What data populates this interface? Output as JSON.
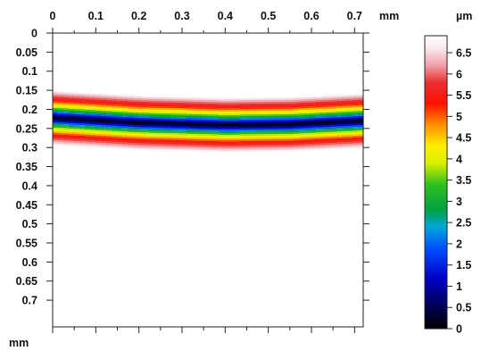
{
  "chart_data": {
    "type": "heatmap",
    "title": "",
    "x_unit": "mm",
    "y_unit": "mm",
    "colorbar_unit": "µm",
    "xlim": [
      0,
      0.72
    ],
    "ylim": [
      0,
      0.77
    ],
    "y_axis_inverted": true,
    "x_ticks": [
      {
        "value": 0,
        "label": "0"
      },
      {
        "value": 0.1,
        "label": "0.1"
      },
      {
        "value": 0.2,
        "label": "0.2"
      },
      {
        "value": 0.3,
        "label": "0.3"
      },
      {
        "value": 0.4,
        "label": "0.4"
      },
      {
        "value": 0.5,
        "label": "0.5"
      },
      {
        "value": 0.6,
        "label": "0.6"
      },
      {
        "value": 0.7,
        "label": "0.7"
      }
    ],
    "y_ticks": [
      {
        "value": 0,
        "label": "0"
      },
      {
        "value": 0.05,
        "label": "0.05"
      },
      {
        "value": 0.1,
        "label": "0.1"
      },
      {
        "value": 0.15,
        "label": "0.15"
      },
      {
        "value": 0.2,
        "label": "0.2"
      },
      {
        "value": 0.25,
        "label": "0.25"
      },
      {
        "value": 0.3,
        "label": "0.3"
      },
      {
        "value": 0.35,
        "label": "0.35"
      },
      {
        "value": 0.4,
        "label": "0.4"
      },
      {
        "value": 0.45,
        "label": "0.45"
      },
      {
        "value": 0.5,
        "label": "0.5"
      },
      {
        "value": 0.55,
        "label": "0.55"
      },
      {
        "value": 0.6,
        "label": "0.6"
      },
      {
        "value": 0.65,
        "label": "0.65"
      },
      {
        "value": 0.7,
        "label": "0.7"
      }
    ],
    "colorbar": {
      "range": [
        0,
        6.9
      ],
      "ticks": [
        {
          "value": 0,
          "label": "0"
        },
        {
          "value": 0.5,
          "label": "0.5"
        },
        {
          "value": 1,
          "label": "1"
        },
        {
          "value": 1.5,
          "label": "1.5"
        },
        {
          "value": 2,
          "label": "2"
        },
        {
          "value": 2.5,
          "label": "2.5"
        },
        {
          "value": 3,
          "label": "3"
        },
        {
          "value": 3.5,
          "label": "3.5"
        },
        {
          "value": 4,
          "label": "4"
        },
        {
          "value": 4.5,
          "label": "4.5"
        },
        {
          "value": 5,
          "label": "5"
        },
        {
          "value": 5.5,
          "label": "5.5"
        },
        {
          "value": 6,
          "label": "6"
        },
        {
          "value": 6.5,
          "label": "6.5"
        }
      ],
      "colormap": [
        {
          "value": 0.0,
          "color": "#000000"
        },
        {
          "value": 0.6,
          "color": "#000060"
        },
        {
          "value": 1.2,
          "color": "#0000c8"
        },
        {
          "value": 1.9,
          "color": "#0050ff"
        },
        {
          "value": 2.4,
          "color": "#00a8d8"
        },
        {
          "value": 2.8,
          "color": "#00a040"
        },
        {
          "value": 3.4,
          "color": "#30c020"
        },
        {
          "value": 3.9,
          "color": "#d8f000"
        },
        {
          "value": 4.3,
          "color": "#ffee00"
        },
        {
          "value": 4.8,
          "color": "#ff9000"
        },
        {
          "value": 5.3,
          "color": "#ff1000"
        },
        {
          "value": 5.8,
          "color": "#e83030"
        },
        {
          "value": 6.2,
          "color": "#f0a0a8"
        },
        {
          "value": 6.6,
          "color": "#f8e8ec"
        },
        {
          "value": 6.9,
          "color": "#ffffff"
        }
      ]
    },
    "background_value": 6.9,
    "band": {
      "description_of_center_y_mm": [
        {
          "x": 0.0,
          "y": 0.222
        },
        {
          "x": 0.2,
          "y": 0.235
        },
        {
          "x": 0.4,
          "y": 0.241
        },
        {
          "x": 0.55,
          "y": 0.239
        },
        {
          "x": 0.72,
          "y": 0.23
        }
      ],
      "profile": [
        {
          "d": 0.0,
          "value": 0.0
        },
        {
          "d": 0.007,
          "value": 1.0
        },
        {
          "d": 0.014,
          "value": 2.0
        },
        {
          "d": 0.02,
          "value": 3.0
        },
        {
          "d": 0.027,
          "value": 3.8
        },
        {
          "d": 0.034,
          "value": 4.3
        },
        {
          "d": 0.04,
          "value": 4.9
        },
        {
          "d": 0.047,
          "value": 5.5
        },
        {
          "d": 0.055,
          "value": 5.9
        },
        {
          "d": 0.063,
          "value": 6.3
        },
        {
          "d": 0.072,
          "value": 6.9
        }
      ]
    }
  }
}
